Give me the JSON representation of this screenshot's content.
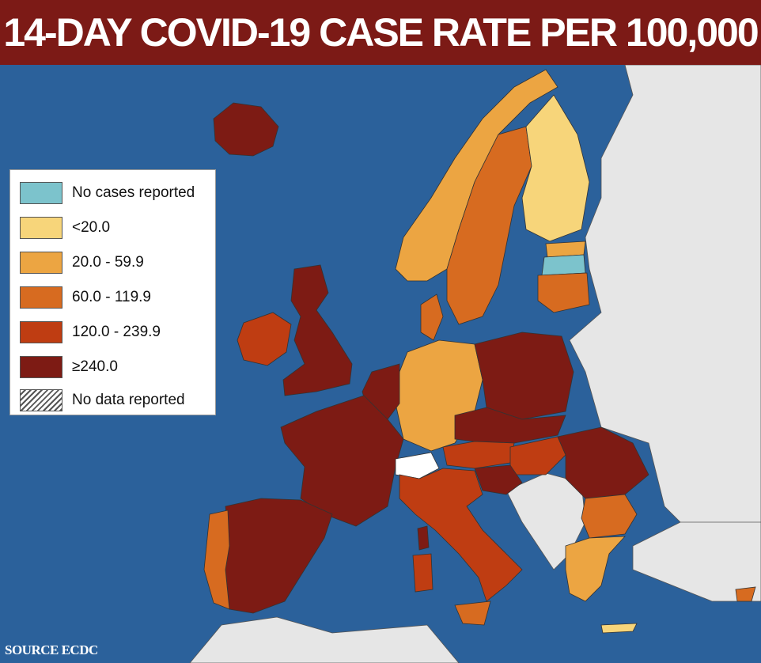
{
  "title": "14-DAY COVID-19 CASE RATE PER 100,000",
  "source": "SOURCE ECDC",
  "legend": {
    "items": [
      {
        "label": "No cases reported",
        "color": "#7cc3cc"
      },
      {
        "label": "<20.0",
        "color": "#f7d57a"
      },
      {
        "label": "20.0 - 59.9",
        "color": "#eca542"
      },
      {
        "label": "60.0 - 119.9",
        "color": "#d76b20"
      },
      {
        "label": "120.0 - 239.9",
        "color": "#bf3d12"
      },
      {
        "label": "≥240.0",
        "color": "#7d1b14"
      },
      {
        "label": "No data reported",
        "color": "hatched"
      }
    ]
  },
  "colors": {
    "sea": "#2b619b",
    "no_data_land": "#e6e6e6",
    "title_bar": "#7c1a16"
  },
  "regions": [
    {
      "name": "iceland",
      "category": "≥240.0"
    },
    {
      "name": "ireland",
      "category": "120.0 - 239.9"
    },
    {
      "name": "united-kingdom",
      "category": "≥240.0"
    },
    {
      "name": "norway",
      "category": "20.0 - 59.9"
    },
    {
      "name": "sweden",
      "category": "60.0 - 119.9"
    },
    {
      "name": "finland",
      "category": "<20.0"
    },
    {
      "name": "estonia",
      "category": "20.0 - 59.9"
    },
    {
      "name": "latvia",
      "category": "No cases reported"
    },
    {
      "name": "lithuania",
      "category": "60.0 - 119.9"
    },
    {
      "name": "denmark",
      "category": "60.0 - 119.9"
    },
    {
      "name": "germany",
      "category": "20.0 - 59.9"
    },
    {
      "name": "benelux",
      "category": "≥240.0"
    },
    {
      "name": "poland",
      "category": "≥240.0"
    },
    {
      "name": "czechia-slovakia",
      "category": "≥240.0"
    },
    {
      "name": "austria",
      "category": "120.0 - 239.9"
    },
    {
      "name": "hungary",
      "category": "120.0 - 239.9"
    },
    {
      "name": "romania",
      "category": "≥240.0"
    },
    {
      "name": "bulgaria",
      "category": "60.0 - 119.9"
    },
    {
      "name": "greece",
      "category": "20.0 - 59.9"
    },
    {
      "name": "france",
      "category": "≥240.0"
    },
    {
      "name": "spain",
      "category": "≥240.0"
    },
    {
      "name": "portugal",
      "category": "60.0 - 119.9"
    },
    {
      "name": "italy",
      "category": "120.0 - 239.9"
    },
    {
      "name": "slovenia-croatia",
      "category": "≥240.0"
    },
    {
      "name": "corsica",
      "category": "≥240.0"
    },
    {
      "name": "sardinia",
      "category": "120.0 - 239.9"
    },
    {
      "name": "sicily",
      "category": "60.0 - 119.9"
    },
    {
      "name": "switzerland",
      "category": "No data reported"
    }
  ]
}
